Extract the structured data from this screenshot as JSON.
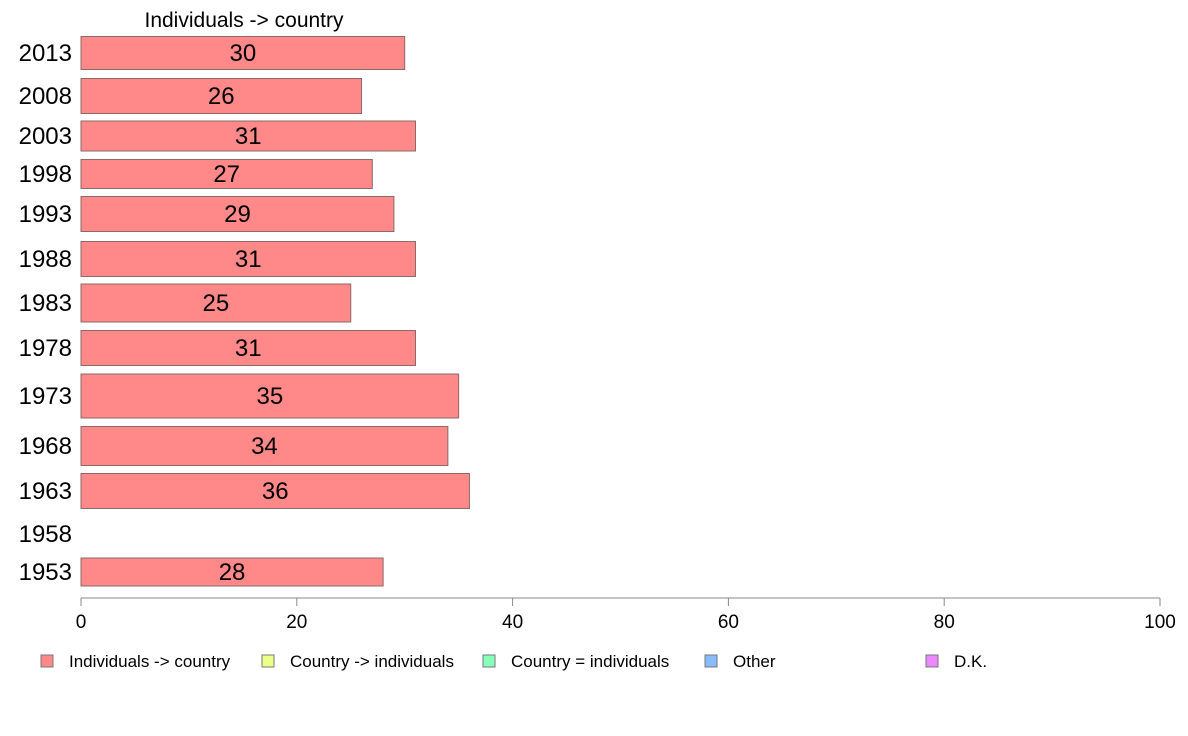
{
  "chart_data": {
    "type": "bar",
    "orientation": "horizontal",
    "title": "Individuals -> country",
    "categories": [
      "2013",
      "2008",
      "2003",
      "1998",
      "1993",
      "1988",
      "1983",
      "1978",
      "1973",
      "1968",
      "1963",
      "1958",
      "1953"
    ],
    "series": [
      {
        "name": "Individuals -> country",
        "color": "#ff8888",
        "values": [
          30,
          26,
          31,
          27,
          29,
          31,
          25,
          31,
          35,
          34,
          36,
          null,
          28
        ],
        "labels": [
          "30",
          "26",
          "31",
          "27",
          "29",
          "31",
          "25",
          "31",
          "35",
          "34",
          "36",
          "",
          "28"
        ]
      }
    ],
    "xlim": [
      0,
      100
    ],
    "xticks": [
      "0",
      "20",
      "40",
      "60",
      "80",
      "100"
    ],
    "grid": false,
    "legend_position": "bottom",
    "legend": [
      {
        "label": "Individuals -> country",
        "color": "#ff8888"
      },
      {
        "label": "Country -> individuals",
        "color": "#eeff88"
      },
      {
        "label": "Country = individuals",
        "color": "#88ffbb"
      },
      {
        "label": "Other",
        "color": "#88bbff"
      },
      {
        "label": "D.K.",
        "color": "#ee88ff"
      }
    ]
  }
}
